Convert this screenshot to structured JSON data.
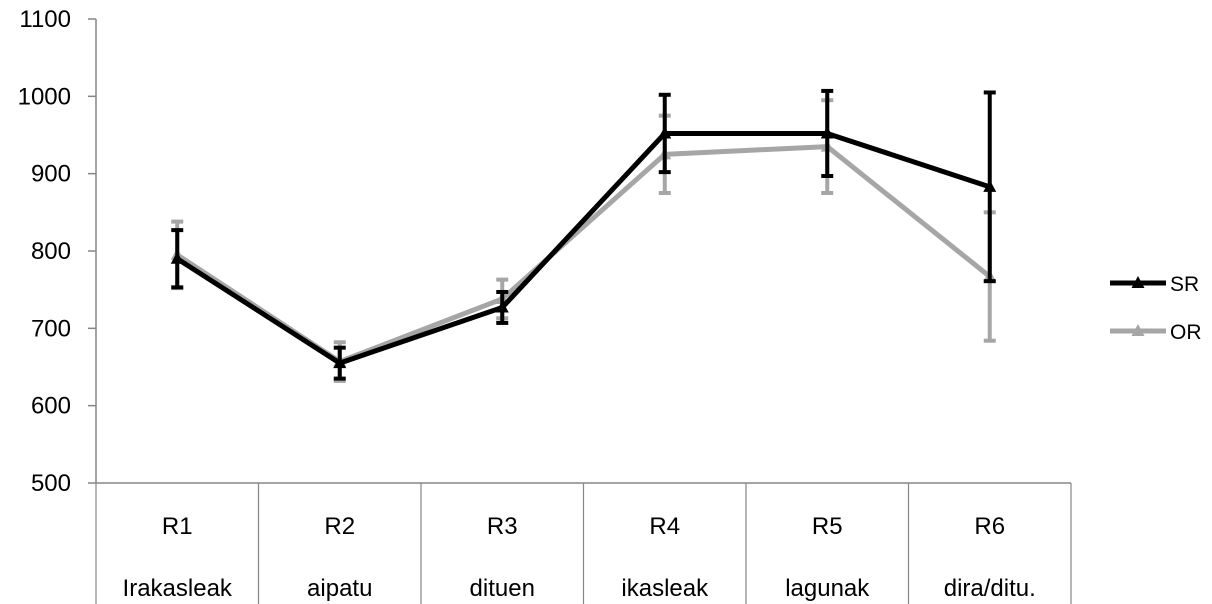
{
  "chart_data": {
    "type": "line",
    "title": "",
    "xlabel": "",
    "ylabel": "",
    "ylim": [
      500,
      1100
    ],
    "yticks": [
      500,
      600,
      700,
      800,
      900,
      1000,
      1100
    ],
    "grid": false,
    "legend_position": "right",
    "categories": [
      {
        "region": "R1",
        "word": "Irakasleak"
      },
      {
        "region": "R2",
        "word": "aipatu"
      },
      {
        "region": "R3",
        "word": "dituen"
      },
      {
        "region": "R4",
        "word": "ikasleak"
      },
      {
        "region": "R5",
        "word": "lagunak"
      },
      {
        "region": "R6",
        "word": "dira/ditu."
      }
    ],
    "series": [
      {
        "name": "SR",
        "color": "#000000",
        "marker": "triangle",
        "values": [
          790,
          655,
          727,
          952,
          952,
          883
        ],
        "error": [
          37,
          20,
          20,
          50,
          55,
          122
        ]
      },
      {
        "name": "OR",
        "color": "#a6a6a6",
        "marker": "triangle",
        "values": [
          795,
          657,
          738,
          925,
          935,
          767
        ],
        "error": [
          43,
          25,
          25,
          50,
          60,
          83
        ]
      }
    ]
  }
}
